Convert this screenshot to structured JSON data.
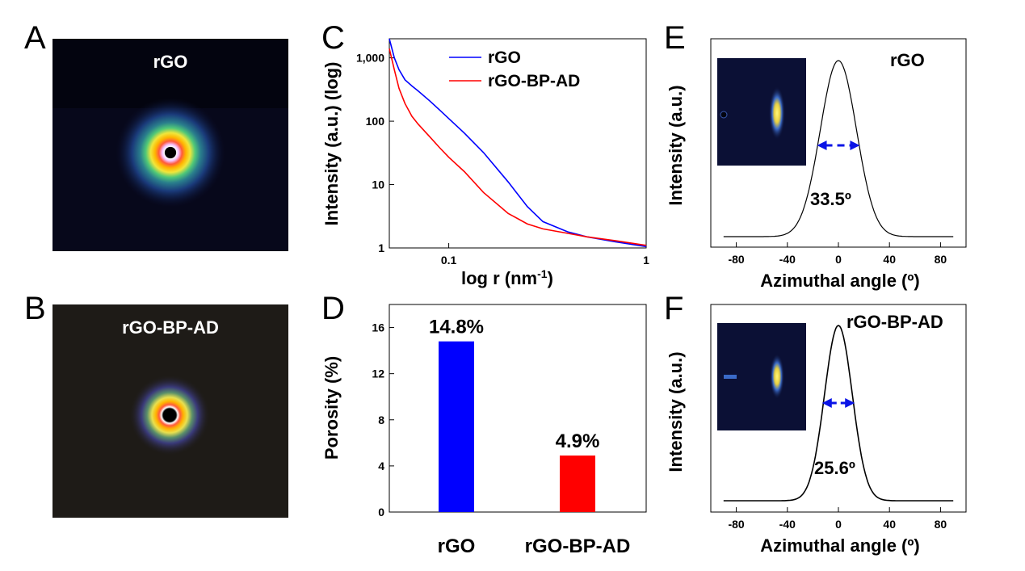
{
  "panels": {
    "A": {
      "letter": "A",
      "label": "rGO"
    },
    "B": {
      "letter": "B",
      "label": "rGO-BP-AD"
    },
    "C": {
      "letter": "C"
    },
    "D": {
      "letter": "D"
    },
    "E": {
      "letter": "E"
    },
    "F": {
      "letter": "F"
    }
  },
  "colors": {
    "rGO": "#0000ff",
    "rGO-BP-AD": "#ff0000",
    "arrow": "#0a14e6"
  },
  "chart_data": [
    {
      "id": "C",
      "type": "line",
      "xscale": "log",
      "yscale": "log",
      "xlim": [
        0.05,
        1
      ],
      "ylim": [
        1,
        2000
      ],
      "xlabel": "log r (nm-1)",
      "xlabel_main": "log r (nm",
      "xlabel_sup": "-1",
      "xlabel_tail": ")",
      "ylabel": "Intensity (a.u.) (log)",
      "xticks": [
        {
          "v": 0.1,
          "label": "0.1"
        },
        {
          "v": 1,
          "label": "1"
        }
      ],
      "yticks": [
        {
          "v": 1,
          "label": "1"
        },
        {
          "v": 10,
          "label": "10"
        },
        {
          "v": 100,
          "label": "100"
        },
        {
          "v": 1000,
          "label": "1,000"
        }
      ],
      "legend_position": "top-center",
      "series": [
        {
          "name": "rGO",
          "color": "#0000ff",
          "x": [
            0.05,
            0.053,
            0.056,
            0.06,
            0.065,
            0.07,
            0.08,
            0.09,
            0.1,
            0.12,
            0.15,
            0.2,
            0.25,
            0.3,
            0.4,
            0.5,
            0.7,
            1.0
          ],
          "y": [
            2000,
            1000,
            650,
            450,
            360,
            300,
            210,
            150,
            110,
            65,
            32,
            11,
            4.5,
            2.6,
            1.8,
            1.5,
            1.25,
            1.05
          ]
        },
        {
          "name": "rGO-BP-AD",
          "color": "#ff0000",
          "x": [
            0.05,
            0.053,
            0.056,
            0.06,
            0.065,
            0.07,
            0.08,
            0.09,
            0.1,
            0.12,
            0.15,
            0.2,
            0.25,
            0.3,
            0.4,
            0.5,
            0.7,
            1.0
          ],
          "y": [
            1400,
            650,
            330,
            190,
            120,
            90,
            57,
            38,
            27,
            16,
            7.5,
            3.5,
            2.4,
            2.0,
            1.7,
            1.5,
            1.3,
            1.1
          ]
        }
      ]
    },
    {
      "id": "D",
      "type": "bar",
      "categories": [
        "rGO",
        "rGO-BP-AD"
      ],
      "values": [
        14.8,
        4.9
      ],
      "value_labels": [
        "14.8%",
        "4.9%"
      ],
      "bar_colors": [
        "#0000ff",
        "#ff0000"
      ],
      "ylabel": "Porosity (%)",
      "ylim": [
        0,
        18
      ],
      "yticks": [
        0,
        4,
        8,
        12,
        16
      ]
    },
    {
      "id": "E",
      "type": "line",
      "title": "rGO",
      "xlim": [
        -100,
        100
      ],
      "xticks": [
        -80,
        -40,
        0,
        40,
        80
      ],
      "xlabel": "Azimuthal angle (º)",
      "ylabel": "Intensity (a.u.)",
      "fwhm_deg": 33.5,
      "fwhm_label": "33.5º",
      "series": [
        {
          "name": "rGO",
          "center": 0,
          "sigma": 14.2,
          "baseline": 0.0,
          "peak": 1.0,
          "range": [
            -90,
            90
          ]
        }
      ]
    },
    {
      "id": "F",
      "type": "line",
      "title": "rGO-BP-AD",
      "xlim": [
        -100,
        100
      ],
      "xticks": [
        -80,
        -40,
        0,
        40,
        80
      ],
      "xlabel": "Azimuthal angle (º)",
      "ylabel": "Intensity (a.u.)",
      "fwhm_deg": 25.6,
      "fwhm_label": "25.6º",
      "series": [
        {
          "name": "rGO-BP-AD",
          "center": 0,
          "sigma": 10.9,
          "baseline": 0.0,
          "peak": 1.0,
          "range": [
            -90,
            90
          ]
        }
      ]
    }
  ]
}
